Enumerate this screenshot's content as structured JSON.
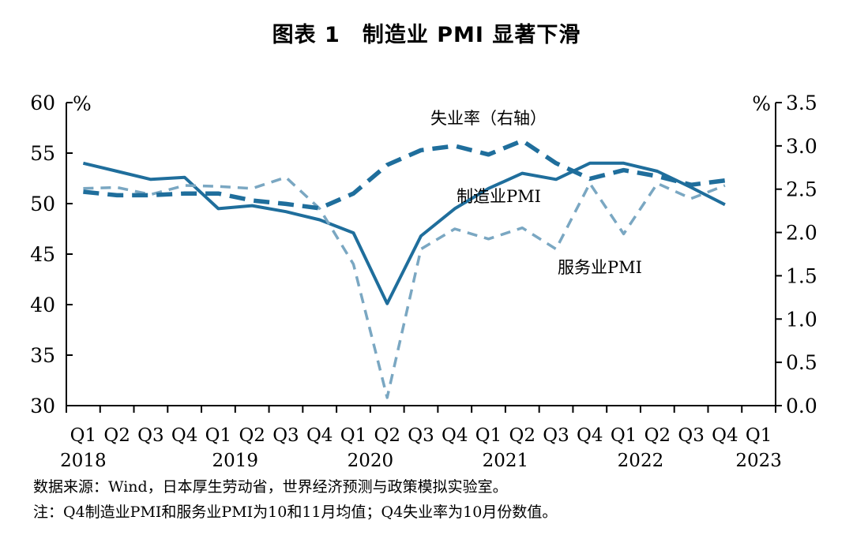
{
  "chart_data": {
    "type": "line",
    "title": "图表 1　制造业 PMI 显著下滑",
    "x_quarters": [
      "Q1",
      "Q2",
      "Q3",
      "Q4",
      "Q1",
      "Q2",
      "Q3",
      "Q4",
      "Q1",
      "Q2",
      "Q3",
      "Q4",
      "Q1",
      "Q2",
      "Q3",
      "Q4",
      "Q1",
      "Q2",
      "Q3",
      "Q4",
      "Q1"
    ],
    "x_years": [
      {
        "label": "2018",
        "quarter_index": 0
      },
      {
        "label": "2019",
        "quarter_index": 4.5
      },
      {
        "label": "2020",
        "quarter_index": 8.5
      },
      {
        "label": "2021",
        "quarter_index": 12.5
      },
      {
        "label": "2022",
        "quarter_index": 16.5
      },
      {
        "label": "2023",
        "quarter_index": 20
      }
    ],
    "ylabel_left": "%",
    "ylabel_right": "%",
    "ylim_left": [
      30,
      60
    ],
    "ylim_right": [
      0.0,
      3.5
    ],
    "yticks_left": [
      "30",
      "35",
      "40",
      "45",
      "50",
      "55",
      "60"
    ],
    "yticks_right": [
      "0.0",
      "0.5",
      "1.0",
      "1.5",
      "2.0",
      "2.5",
      "3.0",
      "3.5"
    ],
    "series": [
      {
        "name": "制造业PMI",
        "axis": "left",
        "style": "solid",
        "color": "#1f6e9c",
        "x": [
          0,
          1,
          2,
          3,
          4,
          5,
          6,
          7,
          8,
          9,
          10,
          11,
          12,
          13,
          14,
          15,
          16,
          17,
          18,
          19
        ],
        "values": [
          54.0,
          53.2,
          52.4,
          52.6,
          49.5,
          49.8,
          49.2,
          48.4,
          47.1,
          40.1,
          46.8,
          49.5,
          51.5,
          53.0,
          52.4,
          54.0,
          54.0,
          53.2,
          51.6,
          49.9
        ]
      },
      {
        "name": "服务业PMI",
        "axis": "left",
        "style": "dashed",
        "color": "#7aa7c2",
        "x": [
          0,
          1,
          2,
          3,
          4,
          5,
          6,
          7,
          8,
          9,
          10,
          11,
          12,
          13,
          14,
          15,
          16,
          17,
          18,
          19
        ],
        "values": [
          51.5,
          51.6,
          50.9,
          51.8,
          51.7,
          51.5,
          52.6,
          49.5,
          44.0,
          30.8,
          45.5,
          47.5,
          46.5,
          47.6,
          45.5,
          52.0,
          47.0,
          52.0,
          50.5,
          51.8
        ]
      },
      {
        "name": "失业率（右轴）",
        "axis": "right",
        "style": "dashed-bold",
        "color": "#1f6e9c",
        "x": [
          0,
          1,
          2,
          3,
          4,
          5,
          6,
          7,
          8,
          9,
          10,
          11,
          12,
          13,
          14,
          15,
          16,
          17,
          18,
          19
        ],
        "values": [
          2.47,
          2.43,
          2.43,
          2.45,
          2.45,
          2.37,
          2.33,
          2.28,
          2.45,
          2.78,
          2.95,
          3.0,
          2.9,
          3.06,
          2.8,
          2.62,
          2.72,
          2.65,
          2.55,
          2.6
        ]
      }
    ],
    "annotations": {
      "unemployment": "失业率（右轴）",
      "manufacturing": "制造业PMI",
      "services": "服务业PMI"
    },
    "source": "数据来源：Wind，日本厚生劳动省，世界经济预测与政策模拟实验室。",
    "footnote": "注：Q4制造业PMI和服务业PMI为10和11月均值；Q4失业率为10月份数值。"
  }
}
